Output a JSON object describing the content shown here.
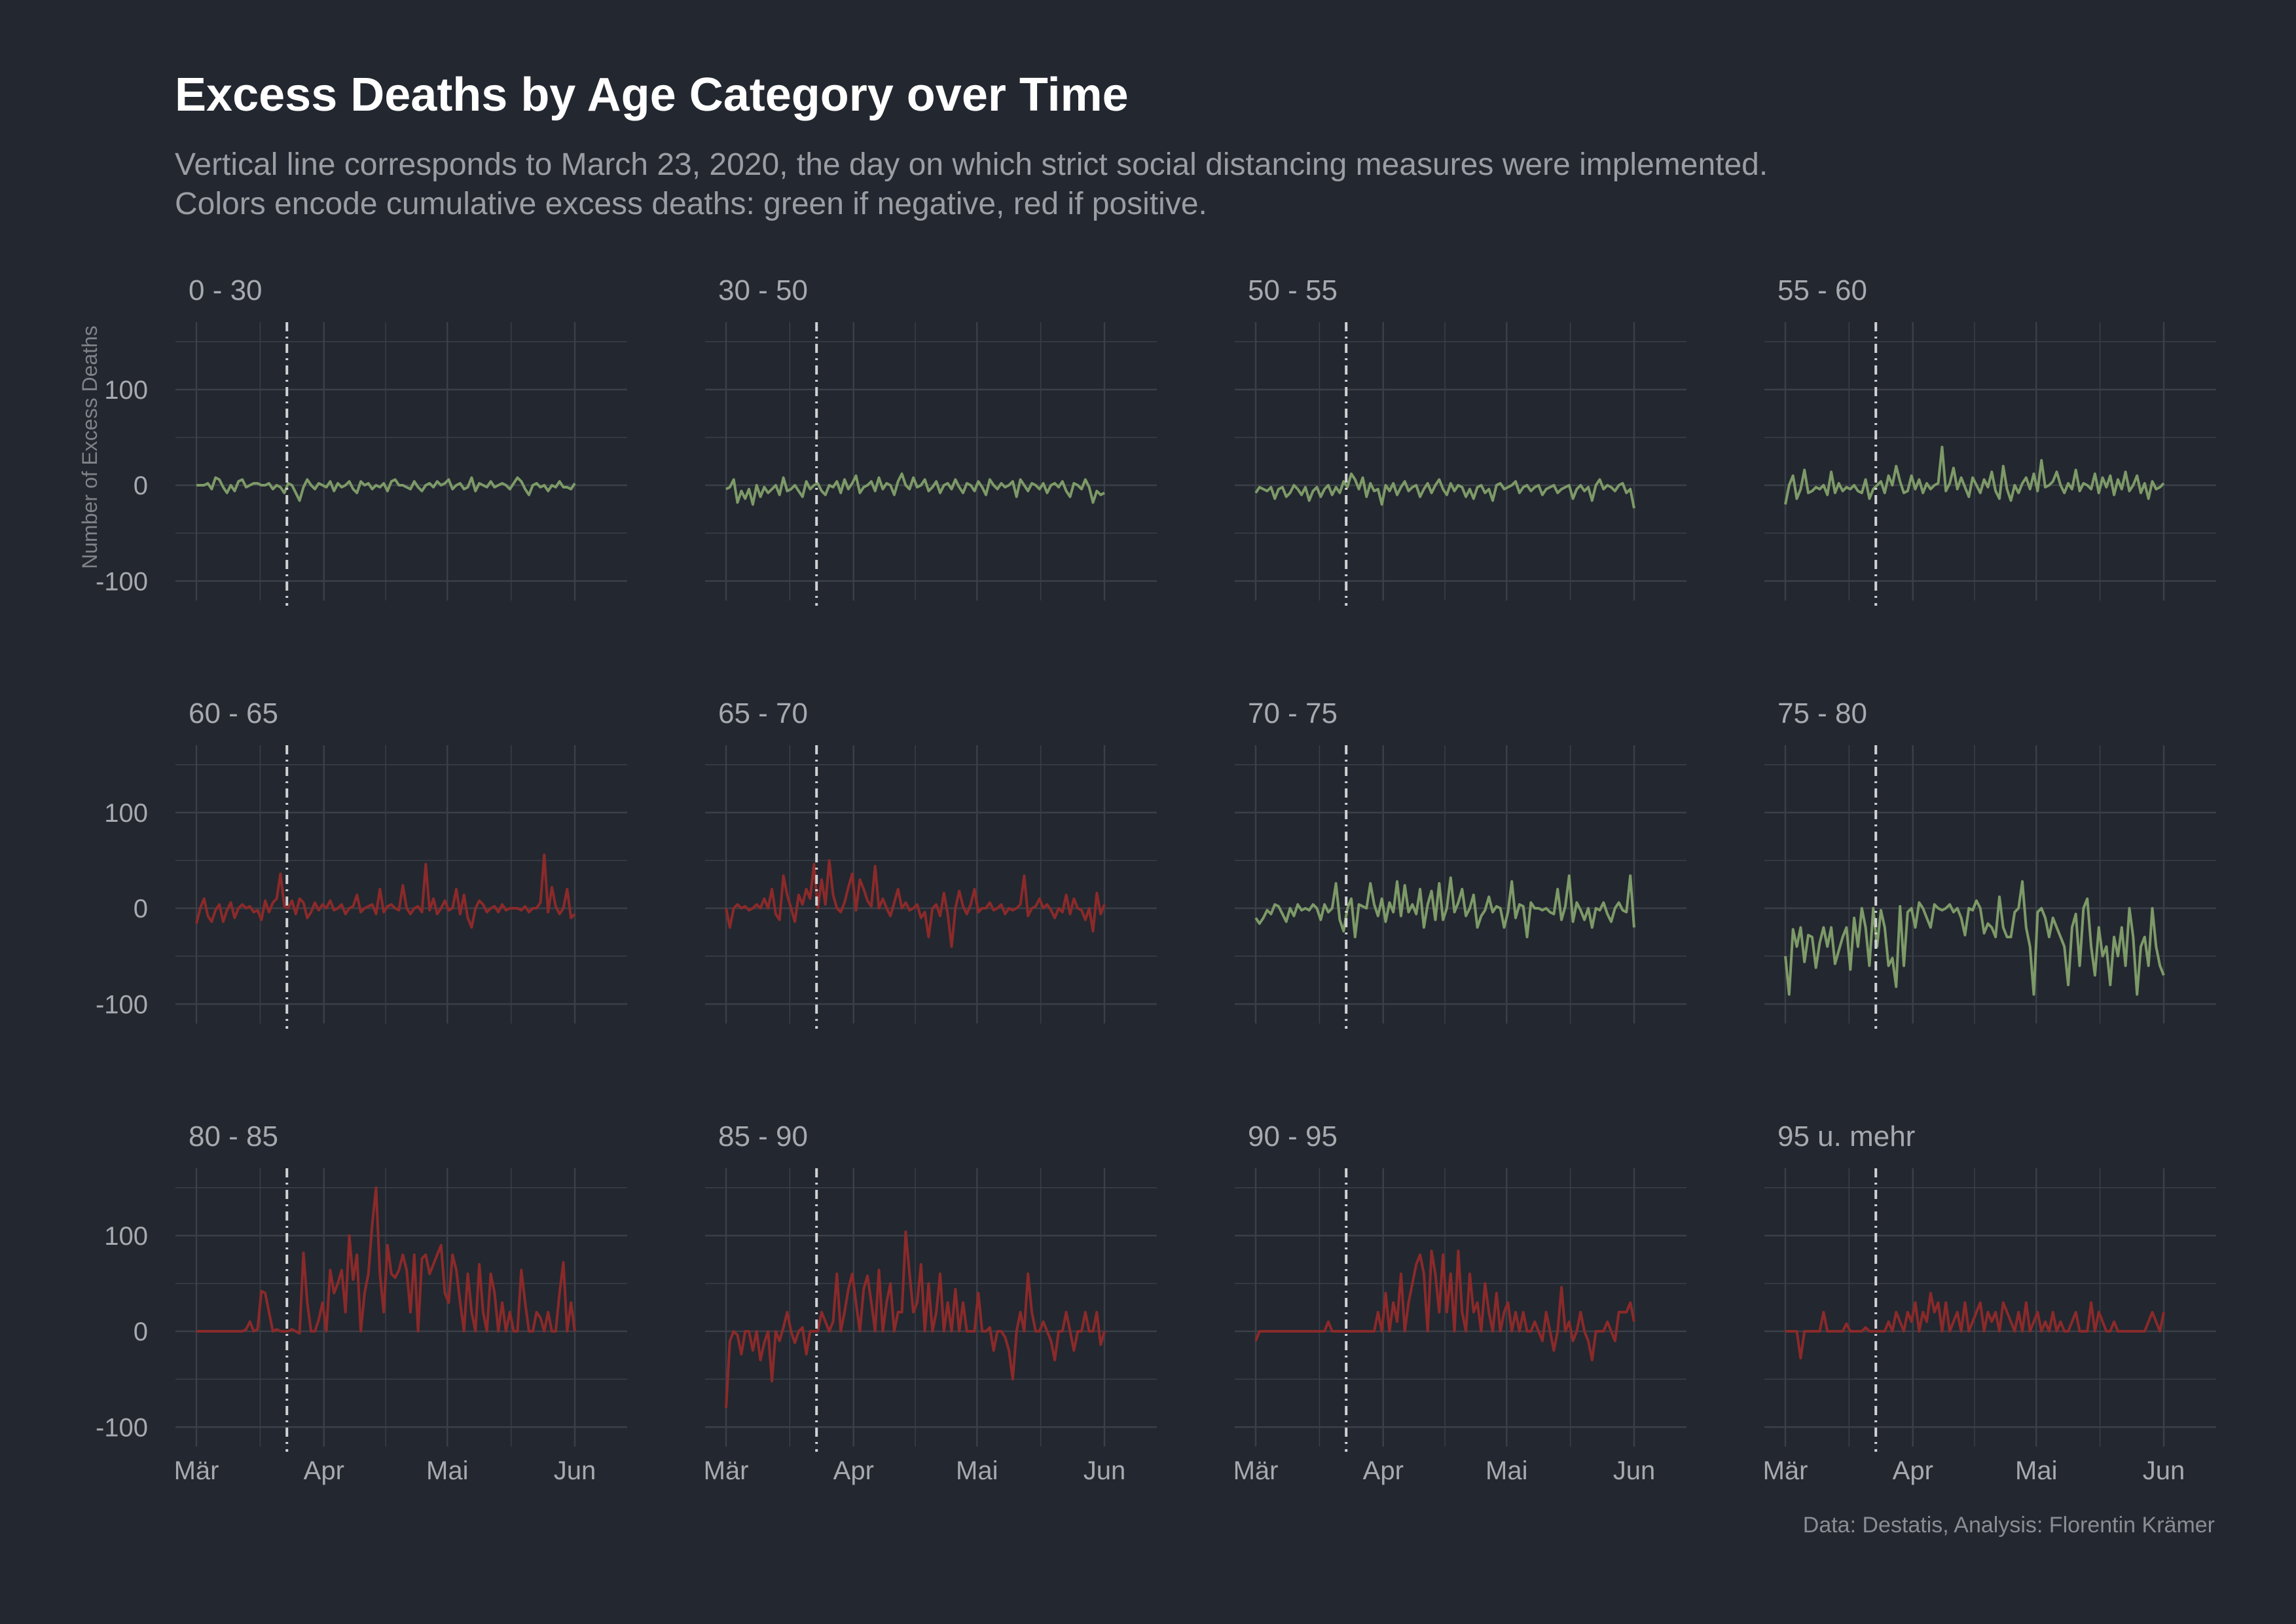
{
  "title": "Excess Deaths by Age Category over Time",
  "subtitle": [
    "Vertical line corresponds to March 23, 2020, the day on which strict social distancing measures were implemented.",
    "Colors encode cumulative excess deaths: green if negative, red if positive."
  ],
  "caption": "Data: Destatis, Analysis: Florentin Krämer",
  "colors": {
    "background": "#23272f",
    "grid": "#3b3f47",
    "positive": "#8b2a2a",
    "negative": "#7d9a68",
    "reference_line": "#cfd1d4",
    "text": "#9a9da3"
  },
  "chart_data": {
    "type": "line",
    "layout": "small-multiples",
    "ylabel": "Number of Excess Deaths",
    "xlabel": "",
    "x_ticks": [
      "Mär",
      "Apr",
      "Mai",
      "Jun"
    ],
    "x_range": [
      "2020-03-01",
      "2020-06-08"
    ],
    "y_ticks": [
      100,
      0,
      -100
    ],
    "ylim": [
      -100,
      150
    ],
    "reference_date": "2020-03-23",
    "grid": true,
    "panels": [
      {
        "name": "0 - 30",
        "cumulative_sign": "negative",
        "values": [
          0,
          0,
          0,
          2,
          -4,
          8,
          6,
          -2,
          -8,
          0,
          -6,
          4,
          6,
          -2,
          0,
          2,
          2,
          0,
          0,
          2,
          -4,
          0,
          -2,
          -8,
          2,
          0,
          -8,
          -16,
          -2,
          6,
          0,
          -4,
          2,
          0,
          -2,
          4,
          -6,
          2,
          -2,
          0,
          4,
          -4,
          -8,
          4,
          0,
          2,
          -4,
          0,
          -2,
          2,
          -6,
          4,
          6,
          0,
          0,
          -2,
          -4,
          4,
          -2,
          -6,
          0,
          2,
          -2,
          4,
          0,
          2,
          6,
          -4,
          0,
          2,
          -4,
          -2,
          8,
          -6,
          2,
          0,
          -2,
          4,
          -2,
          0,
          2,
          0,
          -4,
          2,
          8,
          4,
          -4,
          -10,
          0,
          2,
          -2,
          0,
          -6,
          0,
          -2,
          4,
          -2,
          -2,
          -4,
          2
        ]
      },
      {
        "name": "30 - 50",
        "cumulative_sign": "negative",
        "values": [
          -4,
          -2,
          6,
          -18,
          -6,
          -14,
          -4,
          -20,
          0,
          -12,
          -2,
          -8,
          -4,
          0,
          -10,
          8,
          -6,
          -4,
          0,
          -6,
          -12,
          4,
          -4,
          0,
          2,
          -6,
          -10,
          0,
          -2,
          4,
          -8,
          6,
          -4,
          2,
          10,
          -8,
          -2,
          0,
          4,
          -6,
          8,
          -4,
          2,
          0,
          -10,
          4,
          12,
          0,
          -4,
          8,
          -2,
          0,
          6,
          -6,
          -2,
          4,
          -8,
          0,
          2,
          -4,
          6,
          -2,
          -8,
          2,
          0,
          -6,
          4,
          -2,
          -10,
          6,
          0,
          -4,
          2,
          -2,
          0,
          4,
          -12,
          6,
          0,
          -6,
          2,
          0,
          -4,
          2,
          -8,
          0,
          2,
          -2,
          4,
          -6,
          -12,
          2,
          0,
          -4,
          6,
          -2,
          -18,
          -6,
          -10,
          -8
        ]
      },
      {
        "name": "50 - 55",
        "cumulative_sign": "negative",
        "values": [
          -8,
          -2,
          -4,
          -6,
          -2,
          -14,
          -4,
          -2,
          -12,
          -8,
          0,
          -4,
          -10,
          -2,
          -16,
          -6,
          -2,
          -12,
          -4,
          0,
          -10,
          -2,
          -8,
          4,
          -2,
          12,
          6,
          -4,
          8,
          -12,
          2,
          -6,
          -4,
          -20,
          0,
          -6,
          2,
          -10,
          -2,
          4,
          -6,
          -2,
          0,
          -12,
          -4,
          2,
          -8,
          0,
          6,
          -4,
          -10,
          2,
          -6,
          0,
          -2,
          -12,
          -4,
          -14,
          -2,
          0,
          -8,
          -4,
          -16,
          0,
          2,
          -4,
          -2,
          0,
          4,
          -8,
          -2,
          0,
          -6,
          -2,
          0,
          -10,
          -4,
          -2,
          0,
          -8,
          -4,
          -2,
          0,
          -14,
          -4,
          0,
          -6,
          -2,
          -16,
          0,
          6,
          -4,
          0,
          -2,
          -6,
          0,
          2,
          -8,
          -4,
          -24
        ]
      },
      {
        "name": "55 - 60",
        "cumulative_sign": "negative",
        "values": [
          -20,
          0,
          10,
          -14,
          -4,
          16,
          -8,
          -6,
          -2,
          -4,
          0,
          -10,
          14,
          -8,
          2,
          -6,
          -2,
          -4,
          0,
          -6,
          -8,
          6,
          -14,
          -4,
          0,
          4,
          -8,
          10,
          0,
          20,
          4,
          -8,
          -6,
          10,
          -4,
          6,
          -8,
          2,
          -4,
          0,
          2,
          40,
          -6,
          2,
          18,
          -4,
          8,
          -2,
          -12,
          8,
          0,
          -8,
          6,
          -2,
          14,
          -6,
          -14,
          20,
          -4,
          -16,
          0,
          -8,
          2,
          8,
          -4,
          12,
          -6,
          26,
          -2,
          0,
          4,
          14,
          0,
          -8,
          2,
          -4,
          16,
          -6,
          2,
          0,
          -4,
          12,
          -8,
          8,
          -2,
          10,
          -10,
          6,
          -4,
          14,
          -6,
          0,
          10,
          -8,
          2,
          -14,
          4,
          -4,
          -2,
          2
        ]
      },
      {
        "name": "60 - 65",
        "cumulative_sign": "positive",
        "values": [
          -16,
          0,
          10,
          -8,
          -14,
          -2,
          4,
          -14,
          -2,
          6,
          -10,
          0,
          4,
          0,
          2,
          -4,
          -2,
          -12,
          8,
          -4,
          6,
          10,
          36,
          2,
          0,
          8,
          -6,
          10,
          6,
          -10,
          -4,
          6,
          -2,
          4,
          0,
          8,
          -2,
          0,
          4,
          -6,
          0,
          2,
          14,
          -4,
          0,
          2,
          4,
          -6,
          20,
          -4,
          2,
          4,
          0,
          -2,
          24,
          0,
          -6,
          0,
          2,
          -4,
          46,
          -2,
          10,
          -6,
          0,
          8,
          -2,
          0,
          20,
          -6,
          14,
          -10,
          -20,
          0,
          8,
          4,
          -4,
          0,
          2,
          -4,
          4,
          -2,
          0,
          0,
          0,
          -2,
          2,
          -4,
          0,
          0,
          6,
          56,
          -4,
          22,
          2,
          -6,
          0,
          20,
          -10,
          -6
        ]
      },
      {
        "name": "65 - 70",
        "cumulative_sign": "positive",
        "values": [
          0,
          -20,
          0,
          4,
          0,
          2,
          -2,
          0,
          4,
          0,
          10,
          0,
          20,
          -6,
          -12,
          34,
          14,
          0,
          -14,
          14,
          4,
          20,
          10,
          46,
          0,
          30,
          4,
          50,
          14,
          0,
          -4,
          6,
          22,
          36,
          -2,
          30,
          20,
          8,
          2,
          44,
          0,
          10,
          0,
          -8,
          6,
          20,
          0,
          6,
          -2,
          0,
          4,
          -10,
          -4,
          -30,
          0,
          4,
          -8,
          16,
          -6,
          -40,
          0,
          18,
          2,
          -6,
          4,
          20,
          -4,
          0,
          0,
          6,
          -2,
          0,
          4,
          -6,
          0,
          -2,
          0,
          4,
          34,
          -8,
          0,
          2,
          10,
          0,
          4,
          -2,
          -10,
          0,
          -4,
          14,
          -6,
          10,
          0,
          -2,
          -12,
          0,
          -24,
          16,
          -6,
          4
        ]
      },
      {
        "name": "70 - 75",
        "cumulative_sign": "negative",
        "values": [
          -10,
          -16,
          -10,
          -2,
          -6,
          4,
          2,
          -6,
          -14,
          0,
          -8,
          4,
          -2,
          0,
          -2,
          4,
          0,
          -12,
          4,
          -4,
          0,
          26,
          -12,
          -24,
          0,
          10,
          -30,
          4,
          2,
          0,
          26,
          4,
          -8,
          10,
          -14,
          6,
          -4,
          28,
          -8,
          24,
          -4,
          4,
          -6,
          20,
          -20,
          4,
          18,
          -12,
          26,
          -12,
          0,
          32,
          -4,
          6,
          20,
          -8,
          0,
          14,
          -20,
          -8,
          -2,
          12,
          -4,
          2,
          0,
          -20,
          -4,
          28,
          -10,
          4,
          2,
          -30,
          6,
          0,
          0,
          -2,
          0,
          -4,
          -6,
          20,
          -12,
          2,
          34,
          -14,
          6,
          -2,
          -12,
          0,
          -20,
          0,
          -2,
          6,
          -6,
          -14,
          0,
          6,
          -2,
          -4,
          34,
          -20
        ]
      },
      {
        "name": "75 - 80",
        "cumulative_sign": "negative",
        "values": [
          -50,
          -90,
          -22,
          -40,
          -20,
          -56,
          -28,
          -30,
          -62,
          -36,
          -20,
          -40,
          -20,
          -58,
          -44,
          -30,
          -20,
          -64,
          -10,
          -40,
          0,
          -20,
          -60,
          0,
          -40,
          -2,
          -20,
          -60,
          -52,
          -82,
          2,
          -60,
          -4,
          0,
          -20,
          6,
          0,
          -10,
          -20,
          4,
          0,
          -2,
          0,
          4,
          -4,
          0,
          -10,
          -28,
          0,
          -2,
          8,
          0,
          -26,
          -16,
          -20,
          -30,
          12,
          -20,
          -30,
          -30,
          -4,
          0,
          28,
          -20,
          -40,
          -90,
          -4,
          0,
          -10,
          -30,
          -10,
          -20,
          -30,
          -40,
          -80,
          -20,
          -6,
          -60,
          0,
          10,
          -40,
          -70,
          -20,
          -50,
          -40,
          -80,
          -30,
          -50,
          -20,
          -60,
          0,
          -30,
          -90,
          -40,
          -30,
          -60,
          0,
          -40,
          -60,
          -70
        ]
      },
      {
        "name": "80 - 85",
        "cumulative_sign": "positive",
        "values": [
          0,
          0,
          0,
          0,
          0,
          0,
          0,
          0,
          0,
          0,
          0,
          0,
          0,
          2,
          10,
          0,
          2,
          42,
          40,
          20,
          0,
          2,
          0,
          0,
          0,
          2,
          0,
          -2,
          82,
          30,
          0,
          0,
          12,
          30,
          0,
          64,
          40,
          50,
          64,
          20,
          100,
          54,
          80,
          0,
          40,
          60,
          112,
          150,
          60,
          20,
          90,
          60,
          56,
          64,
          80,
          64,
          20,
          80,
          0,
          76,
          80,
          60,
          70,
          80,
          90,
          40,
          30,
          80,
          64,
          30,
          0,
          60,
          20,
          0,
          70,
          20,
          0,
          60,
          40,
          0,
          30,
          0,
          20,
          0,
          0,
          64,
          30,
          0,
          0,
          20,
          14,
          0,
          20,
          0,
          0,
          40,
          72,
          0,
          30,
          0
        ]
      },
      {
        "name": "85 - 90",
        "cumulative_sign": "positive",
        "values": [
          -80,
          -10,
          0,
          -4,
          -24,
          0,
          0,
          -20,
          0,
          -30,
          -12,
          0,
          -52,
          0,
          -10,
          4,
          20,
          0,
          -12,
          0,
          4,
          -24,
          0,
          0,
          0,
          20,
          10,
          0,
          10,
          60,
          0,
          20,
          44,
          60,
          30,
          0,
          44,
          58,
          30,
          0,
          64,
          0,
          30,
          50,
          0,
          20,
          20,
          104,
          60,
          20,
          30,
          70,
          0,
          50,
          0,
          20,
          60,
          0,
          30,
          0,
          44,
          0,
          30,
          0,
          0,
          0,
          40,
          0,
          0,
          4,
          -20,
          0,
          0,
          -6,
          -20,
          -50,
          0,
          20,
          0,
          60,
          20,
          0,
          0,
          10,
          0,
          -10,
          -30,
          0,
          0,
          20,
          0,
          -20,
          0,
          0,
          20,
          0,
          0,
          20,
          -14,
          0
        ]
      },
      {
        "name": "90 - 95",
        "cumulative_sign": "positive",
        "values": [
          -10,
          0,
          0,
          0,
          0,
          0,
          0,
          0,
          0,
          0,
          0,
          0,
          0,
          0,
          0,
          0,
          0,
          0,
          0,
          10,
          0,
          0,
          0,
          0,
          0,
          0,
          0,
          0,
          0,
          0,
          0,
          0,
          20,
          0,
          40,
          0,
          30,
          10,
          60,
          0,
          30,
          50,
          70,
          80,
          60,
          0,
          84,
          60,
          20,
          80,
          20,
          60,
          0,
          84,
          20,
          0,
          60,
          20,
          30,
          0,
          50,
          20,
          0,
          40,
          0,
          20,
          30,
          0,
          20,
          0,
          20,
          0,
          0,
          10,
          0,
          -10,
          20,
          0,
          -20,
          0,
          46,
          0,
          10,
          -10,
          0,
          20,
          0,
          -10,
          -30,
          0,
          0,
          0,
          10,
          0,
          -10,
          20,
          20,
          20,
          30,
          10
        ]
      },
      {
        "name": "95 u. mehr",
        "cumulative_sign": "positive",
        "values": [
          0,
          0,
          0,
          0,
          -28,
          0,
          0,
          0,
          0,
          0,
          20,
          0,
          0,
          0,
          0,
          0,
          8,
          0,
          0,
          0,
          0,
          4,
          0,
          0,
          0,
          0,
          0,
          10,
          0,
          20,
          10,
          0,
          20,
          10,
          30,
          0,
          20,
          10,
          40,
          20,
          30,
          0,
          30,
          0,
          10,
          20,
          0,
          30,
          0,
          10,
          20,
          30,
          0,
          20,
          10,
          20,
          0,
          30,
          20,
          10,
          0,
          20,
          0,
          30,
          0,
          10,
          20,
          0,
          10,
          0,
          20,
          0,
          10,
          0,
          0,
          10,
          20,
          0,
          0,
          0,
          30,
          0,
          20,
          10,
          0,
          0,
          10,
          0,
          0,
          0,
          0,
          0,
          0,
          0,
          0,
          10,
          20,
          10,
          0,
          20
        ]
      }
    ]
  }
}
